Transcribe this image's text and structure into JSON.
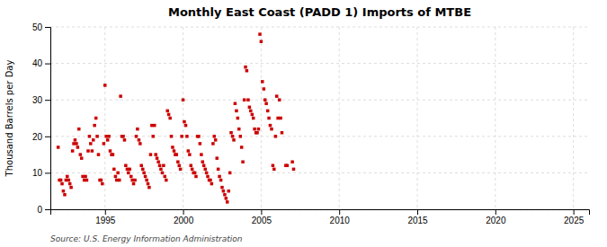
{
  "chart_data": {
    "type": "scatter",
    "title": "Monthly East Coast (PADD 1) Imports of MTBE",
    "ylabel": "Thousand Barrels per Day",
    "source": "Source: U.S. Energy Information Administration",
    "color": "#cc0000",
    "marker": "square",
    "grid": true,
    "xlim": [
      1991.5,
      2026
    ],
    "ylim": [
      0,
      50
    ],
    "xticks": [
      1995,
      2000,
      2005,
      2010,
      2015,
      2020,
      2025
    ],
    "yticks": [
      0,
      10,
      20,
      30,
      40,
      50
    ],
    "x": [
      1992.0,
      1992.08,
      1992.17,
      1992.25,
      1992.33,
      1992.42,
      1992.5,
      1992.58,
      1992.67,
      1992.75,
      1992.83,
      1992.92,
      1993.0,
      1993.08,
      1993.17,
      1993.25,
      1993.33,
      1993.42,
      1993.5,
      1993.58,
      1993.67,
      1993.75,
      1993.83,
      1993.92,
      1994.0,
      1994.08,
      1994.17,
      1994.25,
      1994.33,
      1994.42,
      1994.5,
      1994.58,
      1994.67,
      1994.75,
      1994.83,
      1994.92,
      1995.0,
      1995.08,
      1995.17,
      1995.25,
      1995.33,
      1995.42,
      1995.5,
      1995.58,
      1995.67,
      1995.75,
      1995.83,
      1995.92,
      1996.0,
      1996.08,
      1996.17,
      1996.25,
      1996.33,
      1996.42,
      1996.5,
      1996.58,
      1996.67,
      1996.75,
      1996.83,
      1996.92,
      1997.0,
      1997.08,
      1997.17,
      1997.25,
      1997.33,
      1997.42,
      1997.5,
      1997.58,
      1997.67,
      1997.75,
      1997.83,
      1997.92,
      1998.0,
      1998.08,
      1998.17,
      1998.25,
      1998.33,
      1998.42,
      1998.5,
      1998.58,
      1998.67,
      1998.75,
      1998.83,
      1998.92,
      1999.0,
      1999.08,
      1999.17,
      1999.25,
      1999.33,
      1999.42,
      1999.5,
      1999.58,
      1999.67,
      1999.75,
      1999.83,
      1999.92,
      2000.0,
      2000.08,
      2000.17,
      2000.25,
      2000.33,
      2000.42,
      2000.5,
      2000.58,
      2000.67,
      2000.75,
      2000.83,
      2000.92,
      2001.0,
      2001.08,
      2001.17,
      2001.25,
      2001.33,
      2001.42,
      2001.5,
      2001.58,
      2001.67,
      2001.75,
      2001.83,
      2001.92,
      2002.0,
      2002.08,
      2002.17,
      2002.25,
      2002.33,
      2002.42,
      2002.5,
      2002.58,
      2002.67,
      2002.75,
      2002.83,
      2002.92,
      2003.0,
      2003.08,
      2003.17,
      2003.25,
      2003.33,
      2003.42,
      2003.5,
      2003.58,
      2003.67,
      2003.75,
      2003.83,
      2003.92,
      2004.0,
      2004.08,
      2004.17,
      2004.25,
      2004.33,
      2004.42,
      2004.5,
      2004.58,
      2004.67,
      2004.75,
      2004.83,
      2004.92,
      2005.0,
      2005.08,
      2005.17,
      2005.25,
      2005.33,
      2005.42,
      2005.5,
      2005.58,
      2005.67,
      2005.75,
      2005.83,
      2005.92,
      2006.0,
      2006.08,
      2006.17,
      2006.25,
      2006.33,
      2006.58,
      2006.67,
      2007.0,
      2007.08
    ],
    "values": [
      17,
      8,
      8,
      7,
      5,
      4,
      8,
      9,
      8,
      7,
      6,
      16,
      18,
      19,
      18,
      17,
      22,
      15,
      14,
      9,
      8,
      9,
      8,
      16,
      20,
      18,
      16,
      19,
      23,
      25,
      20,
      15,
      8,
      8,
      7,
      18,
      34,
      20,
      19,
      20,
      16,
      15,
      15,
      11,
      9,
      8,
      10,
      8,
      31,
      20,
      20,
      19,
      12,
      11,
      10,
      11,
      9,
      8,
      7,
      8,
      20,
      22,
      19,
      18,
      12,
      11,
      10,
      9,
      8,
      7,
      6,
      15,
      23,
      20,
      23,
      15,
      14,
      13,
      12,
      11,
      10,
      12,
      9,
      8,
      27,
      26,
      25,
      20,
      17,
      16,
      15,
      15,
      13,
      12,
      11,
      20,
      30,
      24,
      23,
      20,
      16,
      15,
      12,
      11,
      10,
      10,
      9,
      20,
      20,
      18,
      15,
      13,
      12,
      11,
      10,
      9,
      8,
      8,
      7,
      18,
      20,
      19,
      14,
      11,
      9,
      8,
      6,
      5,
      4,
      3,
      2,
      5,
      10,
      21,
      20,
      19,
      29,
      27,
      25,
      22,
      20,
      17,
      13,
      30,
      39,
      38,
      30,
      28,
      27,
      26,
      25,
      22,
      21,
      21,
      22,
      48,
      46,
      35,
      33,
      30,
      29,
      27,
      25,
      23,
      22,
      12,
      11,
      20,
      31,
      25,
      30,
      25,
      21,
      12,
      12,
      13,
      11
    ]
  }
}
